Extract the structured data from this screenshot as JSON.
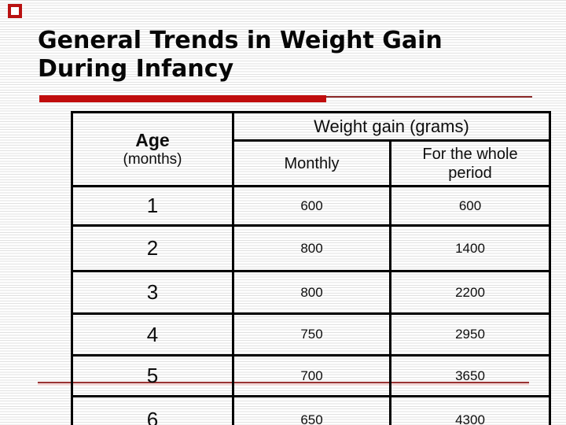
{
  "slide": {
    "title_line1": "General Trends in Weight Gain",
    "title_line2": "During Infancy"
  },
  "table": {
    "age_header": "Age",
    "age_subheader": "(months)",
    "group_header": "Weight gain (grams)",
    "monthly_header": "Monthly",
    "whole_period_header": "For the whole period",
    "rows": [
      {
        "age": "1",
        "monthly": "600",
        "whole": "600"
      },
      {
        "age": "2",
        "monthly": "800",
        "whole": "1400"
      },
      {
        "age": "3",
        "monthly": "800",
        "whole": "2200"
      },
      {
        "age": "4",
        "monthly": "750",
        "whole": "2950"
      },
      {
        "age": "5",
        "monthly": "700",
        "whole": "3650"
      },
      {
        "age": "6",
        "monthly": "650",
        "whole": "4300"
      }
    ]
  },
  "colors": {
    "accent_red": "#c00d0d",
    "line_maroon": "#8c2a2a",
    "stripe_gray": "#e1e1e1",
    "border_black": "#000000"
  }
}
